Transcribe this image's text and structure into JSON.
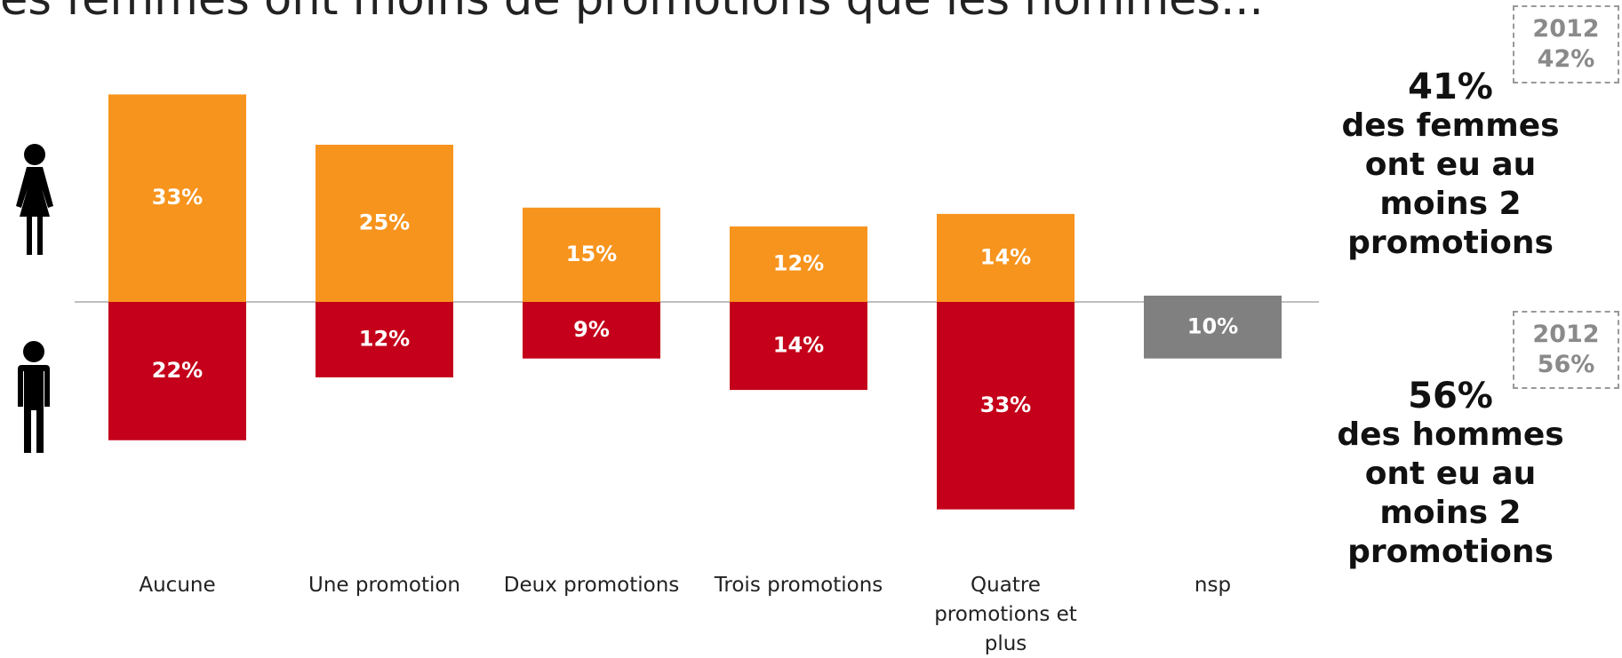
{
  "chart_data": {
    "type": "bar",
    "title": "es femmes ont moins de promotions que les hommes...",
    "categories": [
      "Aucune",
      "Une promotion",
      "Deux promotions",
      "Trois promotions",
      "Quatre promotions et plus",
      "nsp"
    ],
    "series": [
      {
        "color": "#f7941d",
        "values": [
          33,
          25,
          15,
          12,
          14,
          null
        ],
        "value_labels": [
          "33%",
          "25%",
          "15%",
          "12%",
          "14%",
          null
        ]
      },
      {
        "color": "#c4001a",
        "values": [
          22,
          12,
          9,
          14,
          33,
          null
        ],
        "value_labels": [
          "22%",
          "12%",
          "9%",
          "14%",
          "33%",
          null
        ]
      },
      {
        "color": "#808080",
        "values": [
          null,
          null,
          null,
          null,
          null,
          10
        ],
        "value_labels": [
          null,
          null,
          null,
          null,
          null,
          "10%"
        ]
      }
    ],
    "annotations": [
      {
        "headline": "41%",
        "lines": [
          "des femmes",
          "ont eu au",
          "moins 2",
          "promotions"
        ],
        "compare": [
          "2012",
          "42%"
        ]
      },
      {
        "headline": "56%",
        "lines": [
          "des hommes",
          "ont eu au",
          "moins 2",
          "promotions"
        ],
        "compare": [
          "2012",
          "56%"
        ]
      }
    ]
  }
}
